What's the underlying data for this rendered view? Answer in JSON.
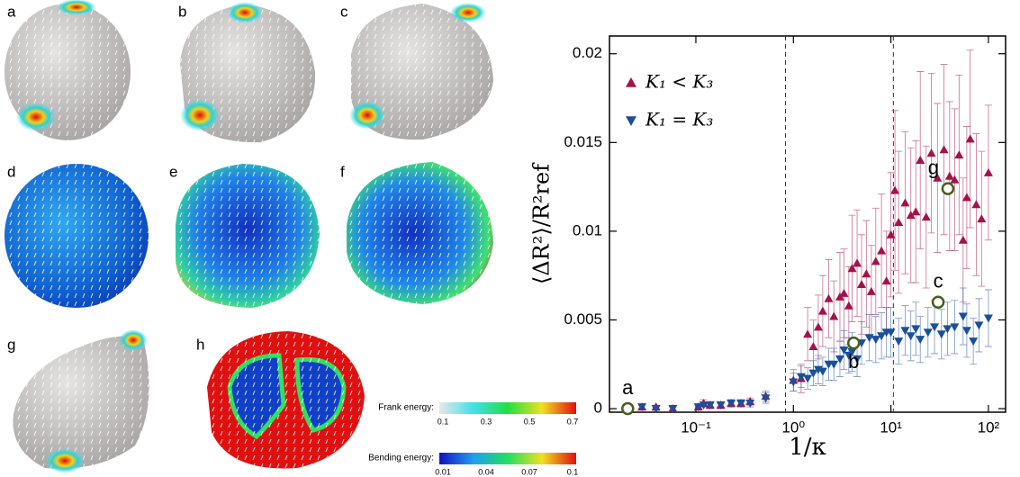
{
  "panels": {
    "labels": [
      "a",
      "b",
      "c",
      "d",
      "e",
      "f",
      "g",
      "h"
    ]
  },
  "colorbars": [
    {
      "title": "Frank energy:",
      "ticks": [
        0.1,
        0.3,
        0.5,
        0.7
      ],
      "colors": [
        "#e8e8e8",
        "#40e0e8",
        "#20e040",
        "#f0e020",
        "#e01010"
      ]
    },
    {
      "title": "Bending energy:",
      "ticks": [
        0.01,
        0.04,
        0.07,
        0.1
      ],
      "colors": [
        "#1010c0",
        "#20a0f0",
        "#20e060",
        "#f0e020",
        "#e01010"
      ]
    }
  ],
  "chart_data": {
    "type": "scatter",
    "xlabel": "1/κ",
    "ylabel": "⟨ΔR²⟩/R²ref",
    "xscale": "log",
    "xlim": [
      0.013,
      150
    ],
    "ylim": [
      -0.0002,
      0.021
    ],
    "xticks": [
      {
        "value": 0.1,
        "label": "10⁻¹"
      },
      {
        "value": 1,
        "label": "10⁰"
      },
      {
        "value": 10,
        "label": "10¹"
      },
      {
        "value": 100,
        "label": "10²"
      }
    ],
    "yticks": [
      0,
      0.005,
      0.01,
      0.015,
      0.02
    ],
    "vlines": [
      0.83,
      10.6
    ],
    "legend": "upper left",
    "series": [
      {
        "name": "K₁ < K₃",
        "color": "#a3124b",
        "marker": "triangle-up",
        "x": [
          0.028,
          0.039,
          0.058,
          0.106,
          0.12,
          0.14,
          0.18,
          0.23,
          0.29,
          0.36,
          0.52,
          1.0,
          1.2,
          1.4,
          1.6,
          1.8,
          2.0,
          2.3,
          2.6,
          3.0,
          3.3,
          3.7,
          4.0,
          4.5,
          5.0,
          5.6,
          6.3,
          7.0,
          8.0,
          9.0,
          10,
          11,
          12,
          14,
          16,
          18,
          20,
          23,
          26,
          30,
          35,
          40,
          45,
          50,
          55,
          60,
          65,
          75,
          85,
          100
        ],
        "values": [
          0.0001,
          0.0001,
          0.0,
          0.0001,
          0.0003,
          0.0002,
          0.0002,
          0.0003,
          0.0003,
          0.0004,
          0.0007,
          0.0016,
          0.0017,
          0.0042,
          0.0035,
          0.0046,
          0.0055,
          0.0062,
          0.0052,
          0.0063,
          0.0065,
          0.0058,
          0.0079,
          0.0082,
          0.007,
          0.0076,
          0.0066,
          0.0083,
          0.0089,
          0.0072,
          0.0098,
          0.0123,
          0.0105,
          0.0116,
          0.0109,
          0.0111,
          0.014,
          0.0108,
          0.0144,
          0.013,
          0.0146,
          0.0131,
          0.0129,
          0.0143,
          0.0095,
          0.0119,
          0.0152,
          0.0115,
          0.0107,
          0.0133
        ],
        "errors": [
          0.0001,
          0.0001,
          0.0001,
          0.0001,
          0.0002,
          0.0002,
          0.0002,
          0.0002,
          0.0002,
          0.0002,
          0.0003,
          0.0006,
          0.0008,
          0.0015,
          0.0015,
          0.0018,
          0.002,
          0.0022,
          0.002,
          0.0025,
          0.0025,
          0.0022,
          0.003,
          0.003,
          0.0028,
          0.003,
          0.0026,
          0.003,
          0.0032,
          0.0028,
          0.0035,
          0.0045,
          0.004,
          0.004,
          0.0038,
          0.004,
          0.005,
          0.004,
          0.0045,
          0.0042,
          0.0048,
          0.0042,
          0.004,
          0.0045,
          0.0035,
          0.004,
          0.005,
          0.004,
          0.0038,
          0.0038
        ]
      },
      {
        "name": "K₁ = K₃",
        "color": "#1a4f9c",
        "marker": "triangle-down",
        "x": [
          0.028,
          0.039,
          0.058,
          0.106,
          0.12,
          0.14,
          0.18,
          0.23,
          0.29,
          0.36,
          0.52,
          1.0,
          1.2,
          1.4,
          1.6,
          1.8,
          2.0,
          2.3,
          2.6,
          3.0,
          3.3,
          3.7,
          4.0,
          4.5,
          5.0,
          6,
          7,
          8,
          9,
          10,
          12,
          14,
          16,
          18,
          20,
          24,
          28,
          33,
          38,
          45,
          55,
          60,
          70,
          80,
          100
        ],
        "values": [
          0.0001,
          0.0,
          0.0,
          0.0001,
          0.0002,
          0.0002,
          0.0002,
          0.0003,
          0.0003,
          0.0003,
          0.0006,
          0.0015,
          0.0018,
          0.0017,
          0.002,
          0.0022,
          0.0021,
          0.0025,
          0.0025,
          0.0028,
          0.0033,
          0.003,
          0.0032,
          0.0028,
          0.0037,
          0.004,
          0.0039,
          0.0041,
          0.0043,
          0.0043,
          0.0038,
          0.0044,
          0.0041,
          0.0045,
          0.0039,
          0.0043,
          0.0046,
          0.0042,
          0.0045,
          0.0046,
          0.0052,
          0.0044,
          0.0038,
          0.0047,
          0.0051
        ],
        "errors": [
          0.0001,
          0.0001,
          0.0001,
          0.0001,
          0.0001,
          0.0001,
          0.0001,
          0.0002,
          0.0002,
          0.0002,
          0.0003,
          0.0005,
          0.0006,
          0.0006,
          0.0007,
          0.0008,
          0.0008,
          0.0009,
          0.0009,
          0.001,
          0.0011,
          0.001,
          0.0011,
          0.001,
          0.0012,
          0.0013,
          0.0013,
          0.0013,
          0.0014,
          0.0014,
          0.0013,
          0.0014,
          0.0014,
          0.0015,
          0.0013,
          0.0014,
          0.0015,
          0.0014,
          0.0015,
          0.0015,
          0.0016,
          0.0015,
          0.0013,
          0.0015,
          0.0016
        ]
      }
    ],
    "annotations": [
      {
        "label": "a",
        "x": 0.02,
        "y": 0,
        "position": "above"
      },
      {
        "label": "b",
        "x": 4.15,
        "y": 0.0037,
        "position": "below"
      },
      {
        "label": "c",
        "x": 30.5,
        "y": 0.006,
        "position": "above"
      },
      {
        "label": "g",
        "x": 38.4,
        "y": 0.0124,
        "position": "above-left"
      }
    ]
  }
}
